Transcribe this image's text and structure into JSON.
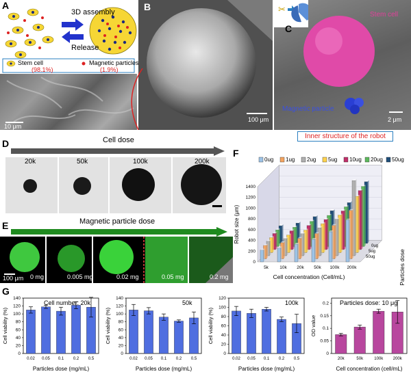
{
  "panel_a": {
    "label": "A",
    "assembly_label": "3D assembly",
    "release_label": "Release",
    "legend_stem": "Stem cell",
    "legend_stem_pct": "(98.1%)",
    "legend_magnetic": "Magnetic particles",
    "legend_magnetic_pct": "(1.9%)",
    "scale": "10 μm"
  },
  "panel_b": {
    "label": "B",
    "scale": "100 μm"
  },
  "panel_c": {
    "label": "C",
    "stem_label": "Stem cell",
    "magnetic_label": "Magnetic particle",
    "scale": "2 μm",
    "caption": "Inner structure of the robot"
  },
  "panel_d": {
    "label": "D",
    "arrow_label": "Cell dose",
    "doses": [
      "20k",
      "50k",
      "100k",
      "200k"
    ]
  },
  "panel_e": {
    "label": "E",
    "arrow_label": "Magnetic particle dose",
    "doses": [
      "0 mg",
      "0.005 mg",
      "0.02 mg",
      "0.05 mg",
      "0.2 mg"
    ],
    "scale": "100 μm"
  },
  "panel_f": {
    "label": "F"
  },
  "panel_g": {
    "label": "G"
  },
  "colors": {
    "blue_bar": "#4f6ee0",
    "pink_bar": "#b8479e",
    "green_arrow": "#1f8a1f",
    "dark_arrow": "#555555",
    "magenta": "#e0409a"
  },
  "chart_data": [
    {
      "type": "bar",
      "panel": "F",
      "title": "",
      "xlabel": "Cell concentration (Cell/mL)",
      "ylabel": "Robot size (μm)",
      "zlabel": "Particles dose",
      "categories": [
        "5k",
        "10k",
        "20k",
        "50k",
        "100k",
        "200k"
      ],
      "depth_ticks": [
        "0ug",
        "5ug",
        "50ug"
      ],
      "ylim": [
        0,
        1400
      ],
      "yticks": [
        0,
        200,
        400,
        600,
        800,
        1000,
        1200,
        1400
      ],
      "series": [
        {
          "name": "0ug",
          "color": "#9dc3e6",
          "values": [
            220,
            260,
            330,
            420,
            560,
            780
          ]
        },
        {
          "name": "1ug",
          "color": "#f4a460",
          "values": [
            250,
            300,
            380,
            470,
            620,
            900
          ]
        },
        {
          "name": "2ug",
          "color": "#b0b0b0",
          "values": [
            270,
            320,
            410,
            520,
            680,
            1400
          ]
        },
        {
          "name": "5ug",
          "color": "#ffd34d",
          "values": [
            280,
            330,
            420,
            540,
            700,
            1050
          ]
        },
        {
          "name": "10ug",
          "color": "#c0306a",
          "values": [
            300,
            350,
            450,
            560,
            720,
            1100
          ]
        },
        {
          "name": "20ug",
          "color": "#5cb85c",
          "values": [
            310,
            360,
            470,
            580,
            740,
            1120
          ]
        },
        {
          "name": "50ug",
          "color": "#1f4e79",
          "values": [
            330,
            380,
            500,
            610,
            760,
            1150
          ]
        }
      ]
    },
    {
      "type": "bar",
      "panel": "G1",
      "annotation": "Cell number: 20k",
      "categories": [
        "0.02",
        "0.05",
        "0.1",
        "0.2",
        "0.5"
      ],
      "values": [
        110,
        118,
        107,
        122,
        117
      ],
      "errors": [
        8,
        4,
        10,
        9,
        25
      ],
      "xlabel": "Particles dose (mg/mL)",
      "ylabel": "Cell viability (%)",
      "ylim": [
        0,
        140
      ],
      "yticks": [
        0,
        20,
        40,
        60,
        80,
        100,
        120,
        140
      ]
    },
    {
      "type": "bar",
      "panel": "G2",
      "annotation": "50k",
      "categories": [
        "0.02",
        "0.05",
        "0.1",
        "0.2",
        "0.5"
      ],
      "values": [
        110,
        108,
        92,
        82,
        90
      ],
      "errors": [
        14,
        8,
        8,
        3,
        15
      ],
      "xlabel": "Particles dose (mg/mL)",
      "ylabel": "Cell viability (%)",
      "ylim": [
        0,
        140
      ],
      "yticks": [
        0,
        20,
        40,
        60,
        80,
        100,
        120,
        140
      ]
    },
    {
      "type": "bar",
      "panel": "G3",
      "annotation": "100k",
      "categories": [
        "0.02",
        "0.05",
        "0.1",
        "0.2",
        "0.5"
      ],
      "values": [
        92,
        87,
        96,
        74,
        65
      ],
      "errors": [
        10,
        9,
        4,
        5,
        20
      ],
      "xlabel": "Particles dose (mg/mL)",
      "ylabel": "Cell viability (%)",
      "ylim": [
        0,
        120
      ],
      "yticks": [
        0,
        20,
        40,
        60,
        80,
        100,
        120
      ]
    },
    {
      "type": "bar",
      "panel": "G4",
      "annotation": "Particles dose: 10 μg",
      "categories": [
        "20k",
        "50k",
        "100k",
        "200k"
      ],
      "values": [
        0.075,
        0.105,
        0.168,
        0.165
      ],
      "errors": [
        0.005,
        0.008,
        0.008,
        0.045
      ],
      "xlabel": "Cell concentration (cell/mL)",
      "ylabel": "OD value",
      "ylim": [
        0,
        0.22
      ]
    }
  ]
}
